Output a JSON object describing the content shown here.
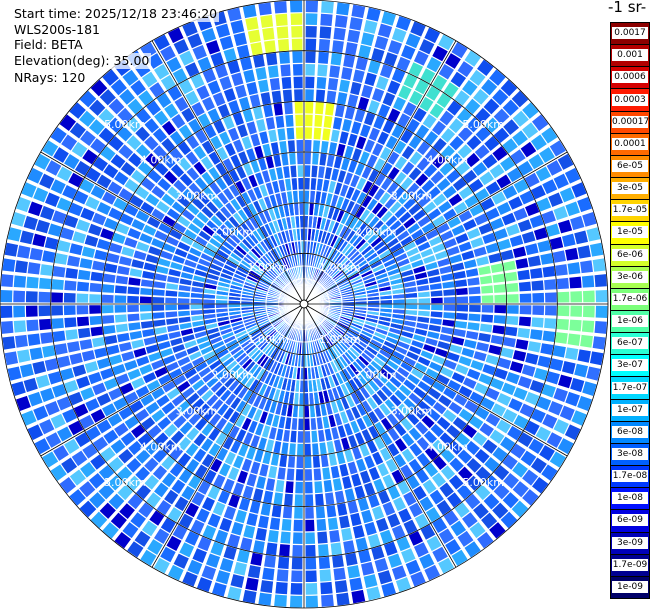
{
  "info": {
    "start_time": "Start time: 2025/12/18 23:46:20",
    "instrument": "WLS200s-181",
    "field": "Field: BETA",
    "elevation": "Elevation(deg): 35.00",
    "nrays": "NRays: 120"
  },
  "colorbar": {
    "title": "-1 sr-",
    "labels": [
      "0.0017",
      "0.001",
      "0.0006",
      "0.0003",
      "0.00017",
      "0.0001",
      "6e-05",
      "3e-05",
      "1.7e-05",
      "1e-05",
      "6e-06",
      "3e-06",
      "1.7e-06",
      "1e-06",
      "6e-07",
      "3e-07",
      "1.7e-07",
      "1e-07",
      "6e-08",
      "3e-08",
      "1.7e-08",
      "1e-08",
      "6e-09",
      "3e-09",
      "1.7e-09",
      "1e-09"
    ],
    "colors": [
      "#8b0000",
      "#b20000",
      "#d40000",
      "#ff1a00",
      "#ff4800",
      "#ff6a00",
      "#ff8c00",
      "#ffae00",
      "#ffd400",
      "#ffff00",
      "#d4ff2a",
      "#a8ff50",
      "#7cff7a",
      "#50ffa6",
      "#2affd4",
      "#00ffff",
      "#00d8ff",
      "#00b0ff",
      "#0088ff",
      "#0060ff",
      "#0038ff",
      "#0010ff",
      "#0000e0",
      "#0000b8",
      "#000090",
      "#000068"
    ]
  },
  "range_labels": [
    "1.00km",
    "2.00km",
    "3.00km",
    "4.00km",
    "5.00km"
  ],
  "chart_data": {
    "type": "heatmap",
    "projection": "polar PPI",
    "field": "BETA",
    "elevation_deg": 35.0,
    "n_rays": 120,
    "range_rings_km": [
      1,
      2,
      3,
      4,
      5
    ],
    "max_range_km": 6.0,
    "background_level": "1e-08 to 3e-08",
    "features": [
      {
        "azimuth_deg": 30,
        "range_km": 4.8,
        "value": "1e-07"
      },
      {
        "azimuth_deg": 2,
        "range_km": 3.6,
        "value": "6e-06"
      },
      {
        "azimuth_deg": 355,
        "range_km": 5.3,
        "value": "1e-05"
      },
      {
        "azimuth_deg": 84,
        "range_km": 3.9,
        "value": "3e-06"
      },
      {
        "azimuth_deg": 94,
        "range_km": 5.4,
        "value": "3e-06"
      }
    ]
  }
}
